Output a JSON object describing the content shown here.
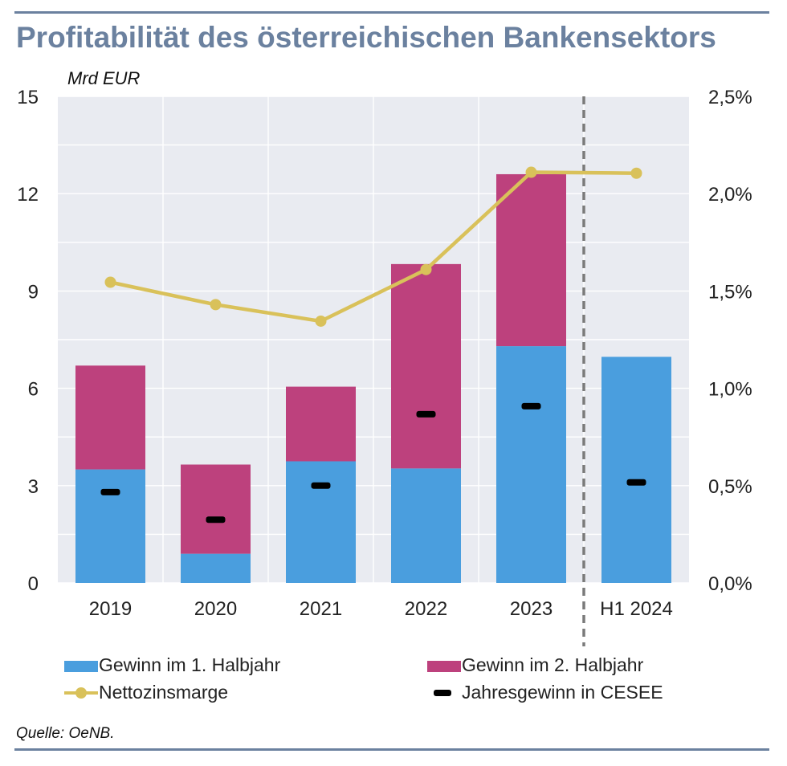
{
  "header": {
    "title": "Profitabilität des österreichischen Bankensektors",
    "unit": "Mrd EUR"
  },
  "footer": {
    "source": "Quelle: OeNB."
  },
  "chart_data": {
    "type": "bar",
    "stacked": true,
    "categories": [
      "2019",
      "2020",
      "2021",
      "2022",
      "2023",
      "H1 2024"
    ],
    "series": [
      {
        "name": "Gewinn im 1. Halbjahr",
        "type": "bar",
        "axis": "left",
        "color": "#4a9ede",
        "values": [
          3.5,
          0.9,
          3.75,
          3.53,
          7.3,
          6.97
        ]
      },
      {
        "name": "Gewinn im 2. Halbjahr",
        "type": "bar",
        "axis": "left",
        "color": "#bd417d",
        "values": [
          3.2,
          2.75,
          2.3,
          6.3,
          5.3,
          null
        ]
      },
      {
        "name": "Nettozinsmarge",
        "type": "line",
        "axis": "right",
        "color": "#d9c15a",
        "values": [
          1.545,
          1.43,
          1.345,
          1.61,
          2.11,
          2.105
        ]
      },
      {
        "name": "Jahresgewinn in CESEE",
        "type": "marker",
        "axis": "left",
        "color": "#000000",
        "values": [
          2.8,
          1.95,
          3.0,
          5.2,
          5.45,
          3.1
        ]
      }
    ],
    "y_left": {
      "range": [
        0,
        15
      ],
      "ticks": [
        "0",
        "3",
        "6",
        "9",
        "12",
        "15"
      ]
    },
    "y_right": {
      "range": [
        0,
        2.5
      ],
      "ticks": [
        "0,0%",
        "0,5%",
        "1,0%",
        "1,5%",
        "2,0%",
        "2,5%"
      ]
    },
    "separator_after_category": "2023",
    "grid": true,
    "legend_position": "bottom"
  }
}
